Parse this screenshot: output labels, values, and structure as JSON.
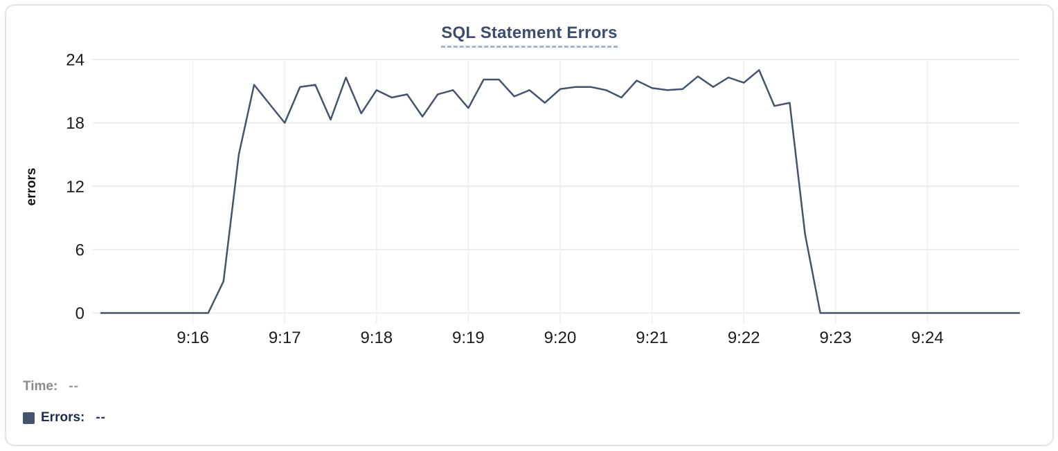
{
  "card": {
    "type": "chart-widget"
  },
  "legend": {
    "time_label": "Time:",
    "time_value": "--",
    "errors_label": "Errors:",
    "errors_value": "--",
    "swatch_color": "#44536e"
  },
  "colors": {
    "series_line": "#44536e",
    "title_text": "#3d4d6e",
    "title_underline": "#a9b3c7",
    "grid_horizontal": "#ececec",
    "grid_vertical": "#efefef",
    "axis_text": "#1c1c1c",
    "y_axis_label_text": "#111111",
    "card_border": "#e3e3e3",
    "background": "#ffffff"
  },
  "chart_data": {
    "type": "line",
    "title": "SQL Statement Errors",
    "xlabel": "",
    "ylabel": "errors",
    "ylim": [
      0,
      24
    ],
    "y_ticks": [
      0,
      6,
      12,
      18,
      24
    ],
    "x_tick_labels": [
      "9:16",
      "9:17",
      "9:18",
      "9:19",
      "9:20",
      "9:21",
      "9:22",
      "9:23",
      "9:24"
    ],
    "x_start": "9:15:00",
    "x_end": "9:25:00",
    "interval_seconds": 10,
    "grid": true,
    "legend_position": "bottom-left",
    "series": [
      {
        "name": "Errors",
        "color": "#44536e",
        "values": [
          0,
          0,
          0,
          0,
          0,
          0,
          0,
          0,
          3,
          15,
          21.6,
          19.8,
          18,
          21.4,
          21.6,
          18.3,
          22.3,
          18.9,
          21.1,
          20.4,
          20.7,
          18.6,
          20.7,
          21.1,
          19.4,
          22.1,
          22.1,
          20.5,
          21.1,
          19.9,
          21.2,
          21.4,
          21.4,
          21.1,
          20.4,
          22,
          21.3,
          21.1,
          21.2,
          22.4,
          21.4,
          22.3,
          21.8,
          23,
          19.6,
          19.9,
          7.5,
          0,
          0,
          0,
          0,
          0,
          0,
          0,
          0,
          0,
          0,
          0,
          0,
          0,
          0
        ]
      }
    ]
  }
}
